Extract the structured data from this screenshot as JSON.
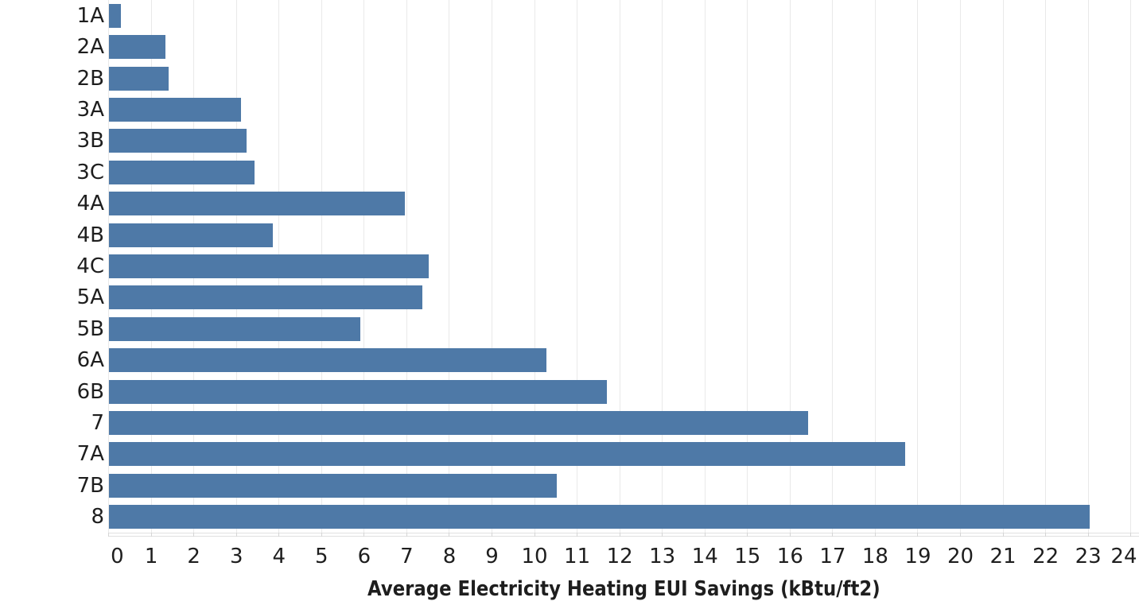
{
  "chart_data": {
    "type": "bar",
    "orientation": "horizontal",
    "title": "",
    "xlabel": "Average Electricity Heating EUI Savings (kBtu/ft2)",
    "ylabel": "",
    "categories": [
      "1A",
      "2A",
      "2B",
      "3A",
      "3B",
      "3C",
      "4A",
      "4B",
      "4C",
      "5A",
      "5B",
      "6A",
      "6B",
      "7",
      "7A",
      "7B",
      "8"
    ],
    "values": [
      0.28,
      1.34,
      1.4,
      3.11,
      3.24,
      3.43,
      6.95,
      3.85,
      7.52,
      7.37,
      5.91,
      10.27,
      11.7,
      16.43,
      18.7,
      10.52,
      23.03
    ],
    "xlim": [
      0,
      24
    ],
    "x_tick_interval": 1,
    "x_tick_labels": [
      "0",
      "1",
      "2",
      "3",
      "4",
      "5",
      "6",
      "7",
      "8",
      "9",
      "10",
      "11",
      "12",
      "13",
      "14",
      "15",
      "16",
      "17",
      "18",
      "19",
      "20",
      "21",
      "22",
      "23",
      "24"
    ],
    "grid": true,
    "legend": false,
    "colors": {
      "bar": "#4e79a7",
      "gridline": "#e9e9e9",
      "axis_line": "#e0e0e0",
      "tick_mark": "#d5d5d5",
      "tick_label_text": "#1e1e1e",
      "category_label_text": "#1e1e1e",
      "axis_title_text": "#1e1e1e",
      "background": "#ffffff"
    }
  }
}
